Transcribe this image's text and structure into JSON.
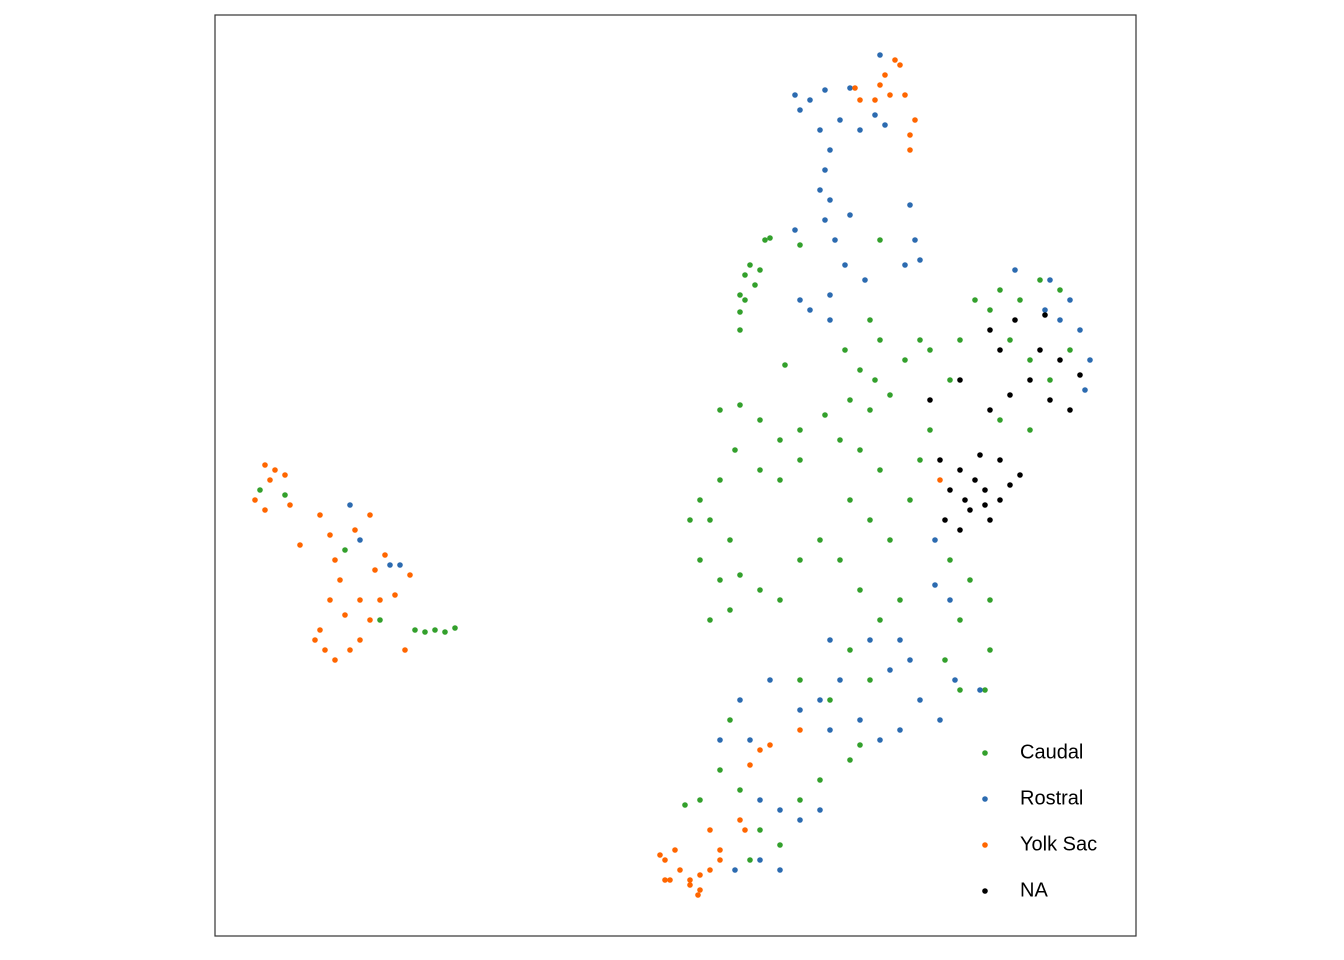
{
  "chart_data": {
    "type": "scatter",
    "xlim": [
      0,
      921
    ],
    "ylim": [
      0,
      921
    ],
    "grid": false,
    "legend": "bottom-right",
    "series": [
      {
        "name": "Caudal",
        "color": "#33a02c",
        "x": [
          550,
          555,
          535,
          530,
          525,
          530,
          540,
          545,
          525,
          525,
          570,
          585,
          665,
          655,
          665,
          645,
          660,
          675,
          690,
          705,
          715,
          630,
          635,
          655,
          760,
          775,
          785,
          805,
          825,
          845,
          795,
          815,
          745,
          735,
          785,
          815,
          835,
          855,
          505,
          525,
          545,
          565,
          585,
          610,
          520,
          545,
          565,
          585,
          505,
          485,
          475,
          495,
          515,
          485,
          505,
          525,
          545,
          565,
          495,
          515,
          585,
          605,
          625,
          645,
          665,
          635,
          655,
          675,
          695,
          705,
          715,
          625,
          645,
          665,
          685,
          735,
          755,
          775,
          745,
          775,
          770,
          730,
          745,
          635,
          655,
          615,
          585,
          515,
          505,
          525,
          485,
          470,
          545,
          585,
          605,
          635,
          645,
          565,
          535,
          200,
          210,
          220,
          230,
          240,
          45,
          70,
          130,
          165
        ],
        "values": [
          696,
          698,
          671,
          661,
          641,
          636,
          651,
          666,
          606,
          624,
          571,
          691,
          696,
          616,
          596,
          566,
          556,
          541,
          576,
          596,
          586,
          586,
          536,
          526,
          636,
          626,
          646,
          636,
          656,
          646,
          596,
          576,
          596,
          556,
          516,
          506,
          556,
          586,
          526,
          531,
          516,
          496,
          506,
          521,
          486,
          466,
          456,
          476,
          456,
          436,
          416,
          416,
          396,
          376,
          356,
          361,
          346,
          336,
          316,
          326,
          376,
          396,
          496,
          486,
          466,
          436,
          416,
          396,
          436,
          476,
          506,
          376,
          346,
          316,
          336,
          376,
          356,
          336,
          316,
          286,
          246,
          276,
          246,
          286,
          256,
          236,
          256,
          216,
          166,
          146,
          136,
          131,
          106,
          136,
          156,
          176,
          191,
          91,
          76,
          306,
          304,
          306,
          304,
          308,
          446,
          441,
          386,
          316
        ]
      },
      {
        "name": "Rostral",
        "color": "#2c6bb0",
        "x": [
          580,
          595,
          610,
          635,
          665,
          585,
          605,
          625,
          645,
          660,
          670,
          615,
          610,
          605,
          615,
          610,
          620,
          630,
          635,
          695,
          700,
          705,
          690,
          585,
          595,
          615,
          615,
          650,
          580,
          800,
          835,
          830,
          855,
          865,
          875,
          870,
          845,
          720,
          735,
          685,
          695,
          675,
          655,
          615,
          625,
          605,
          555,
          525,
          585,
          615,
          645,
          665,
          685,
          725,
          705,
          505,
          535,
          545,
          565,
          585,
          605,
          545,
          520,
          565,
          720,
          740,
          765,
          135,
          175,
          185,
          145
        ],
        "values": [
          841,
          836,
          846,
          848,
          881,
          826,
          806,
          816,
          806,
          821,
          811,
          786,
          766,
          746,
          736,
          716,
          696,
          671,
          721,
          731,
          696,
          676,
          671,
          636,
          626,
          641,
          616,
          656,
          706,
          666,
          656,
          626,
          636,
          606,
          576,
          546,
          616,
          351,
          336,
          296,
          276,
          266,
          296,
          296,
          256,
          236,
          256,
          236,
          226,
          206,
          216,
          196,
          206,
          216,
          236,
          196,
          196,
          136,
          126,
          116,
          126,
          76,
          66,
          66,
          396,
          256,
          246,
          431,
          371,
          371,
          396
        ]
      },
      {
        "name": "Yolk Sac",
        "color": "#ff6600",
        "x": [
          680,
          685,
          670,
          665,
          675,
          660,
          690,
          640,
          700,
          695,
          695,
          645,
          445,
          450,
          455,
          465,
          475,
          485,
          495,
          485,
          475,
          460,
          495,
          505,
          525,
          530,
          545,
          555,
          535,
          585,
          725,
          505,
          450,
          483,
          50,
          60,
          70,
          55,
          40,
          50,
          75,
          85,
          105,
          115,
          120,
          125,
          115,
          130,
          105,
          110,
          120,
          135,
          145,
          155,
          165,
          160,
          170,
          155,
          140,
          190,
          195,
          180,
          100,
          145
        ],
        "values": [
          876,
          871,
          861,
          851,
          841,
          836,
          841,
          848,
          816,
          801,
          786,
          836,
          81,
          76,
          56,
          66,
          56,
          61,
          66,
          46,
          51,
          86,
          106,
          86,
          116,
          106,
          186,
          191,
          171,
          206,
          456,
          76,
          56,
          41,
          471,
          466,
          461,
          456,
          436,
          426,
          431,
          391,
          421,
          401,
          376,
          356,
          336,
          321,
          306,
          286,
          276,
          286,
          296,
          316,
          336,
          366,
          381,
          421,
          406,
          286,
          361,
          341,
          296,
          336
        ]
      },
      {
        "name": "NA",
        "color": "#000000",
        "x": [
          775,
          785,
          800,
          830,
          825,
          845,
          815,
          865,
          855,
          835,
          795,
          745,
          715,
          775,
          725,
          745,
          760,
          770,
          785,
          795,
          735,
          755,
          775,
          730,
          745,
          785,
          765,
          805,
          750,
          770
        ],
        "values": [
          606,
          586,
          616,
          621,
          586,
          576,
          556,
          561,
          526,
          536,
          541,
          556,
          536,
          526,
          476,
          466,
          456,
          446,
          436,
          451,
          446,
          426,
          416,
          416,
          406,
          476,
          481,
          461,
          436,
          431
        ]
      }
    ]
  }
}
